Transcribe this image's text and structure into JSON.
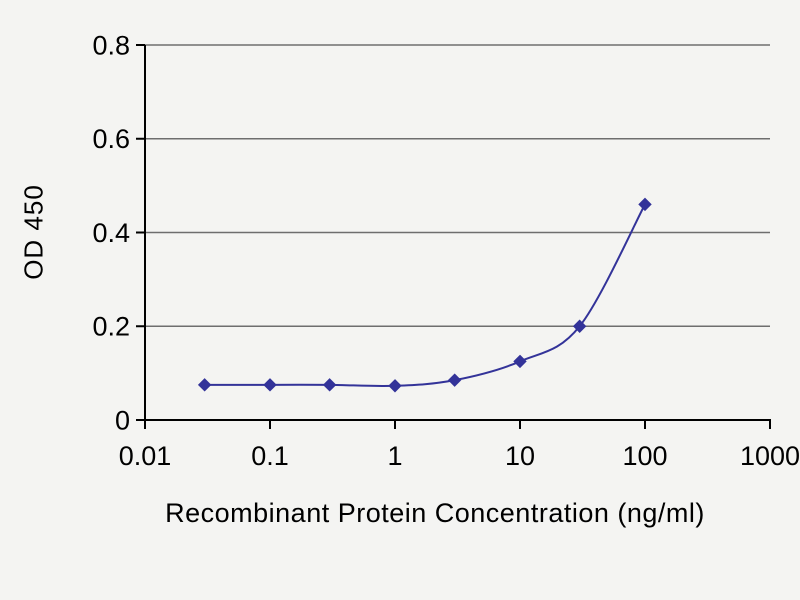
{
  "page": {
    "background": "#f4f4f2"
  },
  "chart_data": {
    "type": "line",
    "title": "",
    "xlabel": "Recombinant Protein Concentration (ng/ml)",
    "ylabel": "OD 450",
    "x_scale": "log",
    "xlim": [
      0.01,
      1000
    ],
    "ylim": [
      0,
      0.8
    ],
    "x_ticks": [
      0.01,
      0.1,
      1,
      10,
      100,
      1000
    ],
    "x_tick_labels": [
      "0.01",
      "0.1",
      "1",
      "10",
      "100",
      "1000"
    ],
    "y_ticks": [
      0,
      0.2,
      0.4,
      0.6,
      0.8
    ],
    "y_tick_labels": [
      "0",
      "0.2",
      "0.4",
      "0.6",
      "0.8"
    ],
    "grid": "horizontal",
    "legend": "none",
    "series": [
      {
        "name": "OD 450",
        "x": [
          0.03,
          0.1,
          0.3,
          1,
          3,
          10,
          30,
          100
        ],
        "y": [
          0.075,
          0.075,
          0.075,
          0.073,
          0.085,
          0.125,
          0.2,
          0.46
        ],
        "color": "#333399",
        "marker": "diamond"
      }
    ],
    "axis_color": "#000000",
    "grid_color": "#6e6e6e",
    "text_color": "#000000"
  }
}
